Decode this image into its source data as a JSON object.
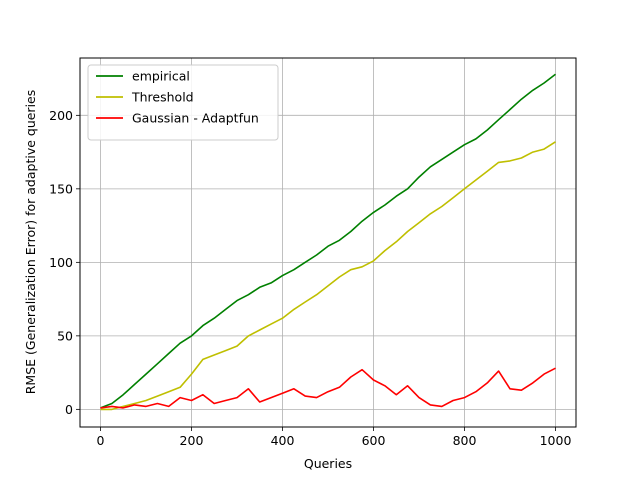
{
  "chart_data": {
    "type": "line",
    "title": "",
    "xlabel": "Queries",
    "ylabel": "RMSE (Generalization Error) for adaptive queries",
    "xlim": [
      -45,
      1045
    ],
    "ylim": [
      -12,
      239
    ],
    "xticks": [
      0,
      200,
      400,
      600,
      800,
      1000
    ],
    "yticks": [
      0,
      50,
      100,
      150,
      200
    ],
    "grid": true,
    "legend_position": "top-left",
    "series": [
      {
        "name": "empirical",
        "color": "#008000",
        "x": [
          0,
          25,
          50,
          75,
          100,
          125,
          150,
          175,
          200,
          225,
          250,
          275,
          300,
          325,
          350,
          375,
          400,
          425,
          450,
          475,
          500,
          525,
          550,
          575,
          600,
          625,
          650,
          675,
          700,
          725,
          750,
          775,
          800,
          825,
          850,
          875,
          900,
          925,
          950,
          975,
          1000
        ],
        "y": [
          1,
          4,
          10,
          17,
          24,
          31,
          38,
          45,
          50,
          57,
          62,
          68,
          74,
          78,
          83,
          86,
          91,
          95,
          100,
          105,
          111,
          115,
          121,
          128,
          134,
          139,
          145,
          150,
          158,
          165,
          170,
          175,
          180,
          184,
          190,
          197,
          204,
          211,
          217,
          222,
          228
        ]
      },
      {
        "name": "Threshold",
        "color": "#bfbf00",
        "x": [
          0,
          25,
          50,
          75,
          100,
          125,
          150,
          175,
          200,
          225,
          250,
          275,
          300,
          325,
          350,
          375,
          400,
          425,
          450,
          475,
          500,
          525,
          550,
          575,
          600,
          625,
          650,
          675,
          700,
          725,
          750,
          775,
          800,
          825,
          850,
          875,
          900,
          925,
          950,
          975,
          1000
        ],
        "y": [
          0,
          0,
          2,
          4,
          6,
          9,
          12,
          15,
          24,
          34,
          37,
          40,
          43,
          50,
          54,
          58,
          62,
          68,
          73,
          78,
          84,
          90,
          95,
          97,
          101,
          108,
          114,
          121,
          127,
          133,
          138,
          144,
          150,
          156,
          162,
          168,
          169,
          171,
          175,
          177,
          182
        ]
      },
      {
        "name": "Gaussian - Adaptfun",
        "color": "#ff0000",
        "x": [
          0,
          25,
          50,
          75,
          100,
          125,
          150,
          175,
          200,
          225,
          250,
          275,
          300,
          325,
          350,
          375,
          400,
          425,
          450,
          475,
          500,
          525,
          550,
          575,
          600,
          625,
          650,
          675,
          700,
          725,
          750,
          775,
          800,
          825,
          850,
          875,
          900,
          925,
          950,
          975,
          1000
        ],
        "y": [
          1,
          2,
          1,
          3,
          2,
          4,
          2,
          8,
          6,
          10,
          4,
          6,
          8,
          14,
          5,
          8,
          11,
          14,
          9,
          8,
          12,
          15,
          22,
          27,
          20,
          16,
          10,
          16,
          8,
          3,
          2,
          6,
          8,
          12,
          18,
          26,
          14,
          13,
          18,
          24,
          28
        ]
      }
    ]
  }
}
